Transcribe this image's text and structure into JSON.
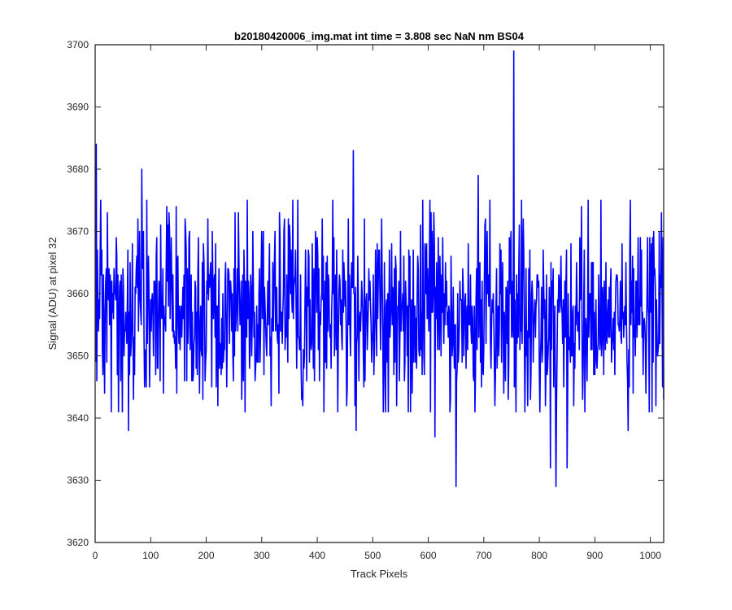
{
  "chart_data": {
    "type": "line",
    "title": "b20180420006_img.mat int time = 3.808 sec  NaN nm BS04",
    "xlabel": "Track Pixels",
    "ylabel": "Signal (ADU) at pixel 32",
    "xlim": [
      0,
      1024
    ],
    "ylim": [
      3620,
      3700
    ],
    "xticks": [
      0,
      100,
      200,
      300,
      400,
      500,
      600,
      700,
      800,
      900,
      1000
    ],
    "yticks": [
      3620,
      3630,
      3640,
      3650,
      3660,
      3670,
      3680,
      3690,
      3700
    ],
    "grid": false,
    "series": [
      {
        "color": "#0000ff",
        "x_start": 1,
        "x_step": 1,
        "mean": 3657,
        "noise_std": 7.5,
        "count": 1024,
        "notable_points": [
          {
            "x": 2,
            "y": 3684
          },
          {
            "x": 60,
            "y": 3638
          },
          {
            "x": 84,
            "y": 3680
          },
          {
            "x": 465,
            "y": 3683
          },
          {
            "x": 470,
            "y": 3638
          },
          {
            "x": 612,
            "y": 3637
          },
          {
            "x": 650,
            "y": 3629
          },
          {
            "x": 690,
            "y": 3679
          },
          {
            "x": 754,
            "y": 3699
          },
          {
            "x": 820,
            "y": 3632
          },
          {
            "x": 830,
            "y": 3629
          },
          {
            "x": 850,
            "y": 3632
          },
          {
            "x": 960,
            "y": 3638
          }
        ]
      }
    ]
  }
}
